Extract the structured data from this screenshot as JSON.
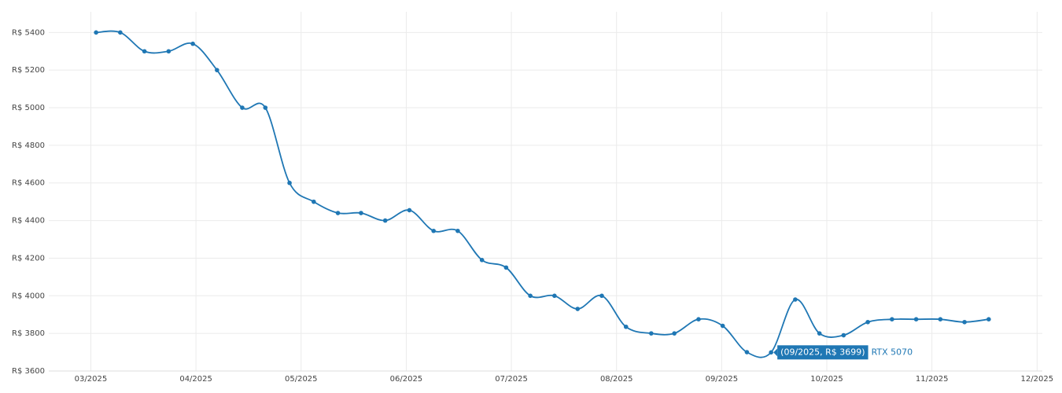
{
  "chart_data": {
    "type": "line",
    "x": [
      3.05,
      3.28,
      3.51,
      3.74,
      3.97,
      4.2,
      4.44,
      4.66,
      4.89,
      5.12,
      5.35,
      5.57,
      5.8,
      6.03,
      6.26,
      6.49,
      6.72,
      6.95,
      7.18,
      7.41,
      7.63,
      7.86,
      8.09,
      8.33,
      8.55,
      8.78,
      9.01,
      9.24,
      9.47,
      9.7,
      9.93,
      10.16,
      10.39,
      10.62,
      10.85,
      11.08,
      11.31,
      11.54
    ],
    "series": [
      {
        "name": "RTX 5070",
        "color": "#1f77b4",
        "values": [
          5400,
          5400,
          5300,
          5300,
          5340,
          5200,
          5000,
          5000,
          4600,
          4500,
          4440,
          4440,
          4400,
          4455,
          4345,
          4345,
          4190,
          4150,
          4000,
          4000,
          3930,
          4000,
          3835,
          3800,
          3800,
          3875,
          3840,
          3700,
          3699,
          3980,
          3800,
          3790,
          3860,
          3875,
          3875,
          3875,
          3860,
          3875
        ]
      }
    ],
    "xlim": [
      2.6,
      12.05
    ],
    "xticks": [
      {
        "value": 3,
        "label": "03/2025"
      },
      {
        "value": 4,
        "label": "04/2025"
      },
      {
        "value": 5,
        "label": "05/2025"
      },
      {
        "value": 6,
        "label": "06/2025"
      },
      {
        "value": 7,
        "label": "07/2025"
      },
      {
        "value": 8,
        "label": "08/2025"
      },
      {
        "value": 9,
        "label": "09/2025"
      },
      {
        "value": 10,
        "label": "10/2025"
      },
      {
        "value": 11,
        "label": "11/2025"
      },
      {
        "value": 12,
        "label": "12/2025"
      }
    ],
    "ylim": [
      3600,
      5510
    ],
    "yticks": [
      {
        "value": 3600,
        "label": "R$ 3600"
      },
      {
        "value": 3800,
        "label": "R$ 3800"
      },
      {
        "value": 4000,
        "label": "R$ 4000"
      },
      {
        "value": 4200,
        "label": "R$ 4200"
      },
      {
        "value": 4400,
        "label": "R$ 4400"
      },
      {
        "value": 4600,
        "label": "R$ 4600"
      },
      {
        "value": 4800,
        "label": "R$ 4800"
      },
      {
        "value": 5000,
        "label": "R$ 5000"
      },
      {
        "value": 5200,
        "label": "R$ 5200"
      },
      {
        "value": 5400,
        "label": "R$ 5400"
      }
    ],
    "grid": true,
    "annotation": {
      "text": "(09/2025, R$ 3699)",
      "x": 9.47,
      "y": 3699
    }
  }
}
